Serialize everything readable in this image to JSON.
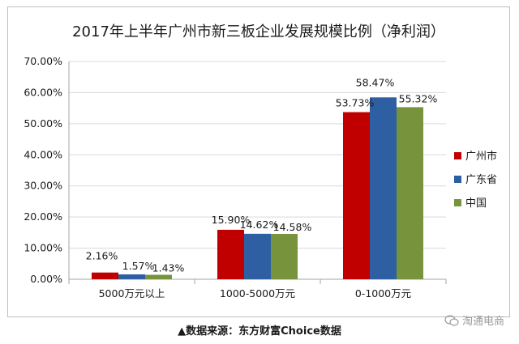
{
  "chart_data": {
    "type": "bar",
    "title": "2017年上半年广州市新三板企业发展规模比例（净利润）",
    "categories": [
      "5000万元以上",
      "1000-5000万元",
      "0-1000万元"
    ],
    "series": [
      {
        "name": "广州市",
        "values": [
          2.16,
          15.9,
          53.73
        ],
        "labels": [
          "2.16%",
          "15.90%",
          "53.73%"
        ],
        "color": "#c00000"
      },
      {
        "name": "广东省",
        "values": [
          1.57,
          14.62,
          58.47
        ],
        "labels": [
          "1.57%",
          "14.62%",
          "58.47%"
        ],
        "color": "#2e5fa3"
      },
      {
        "name": "中国",
        "values": [
          1.43,
          14.58,
          55.32
        ],
        "labels": [
          "1.43%",
          "14.58%",
          "55.32%"
        ],
        "color": "#77933c"
      }
    ],
    "ylim": [
      0,
      70
    ],
    "y_ticks": [
      "0.00%",
      "10.00%",
      "20.00%",
      "30.00%",
      "40.00%",
      "50.00%",
      "60.00%",
      "70.00%"
    ],
    "xlabel": "",
    "ylabel": "",
    "grid": true,
    "legend_position": "right"
  },
  "footer": {
    "source_note": "▲数据来源：东方财富Choice数据",
    "watermark": "淘通电商"
  }
}
